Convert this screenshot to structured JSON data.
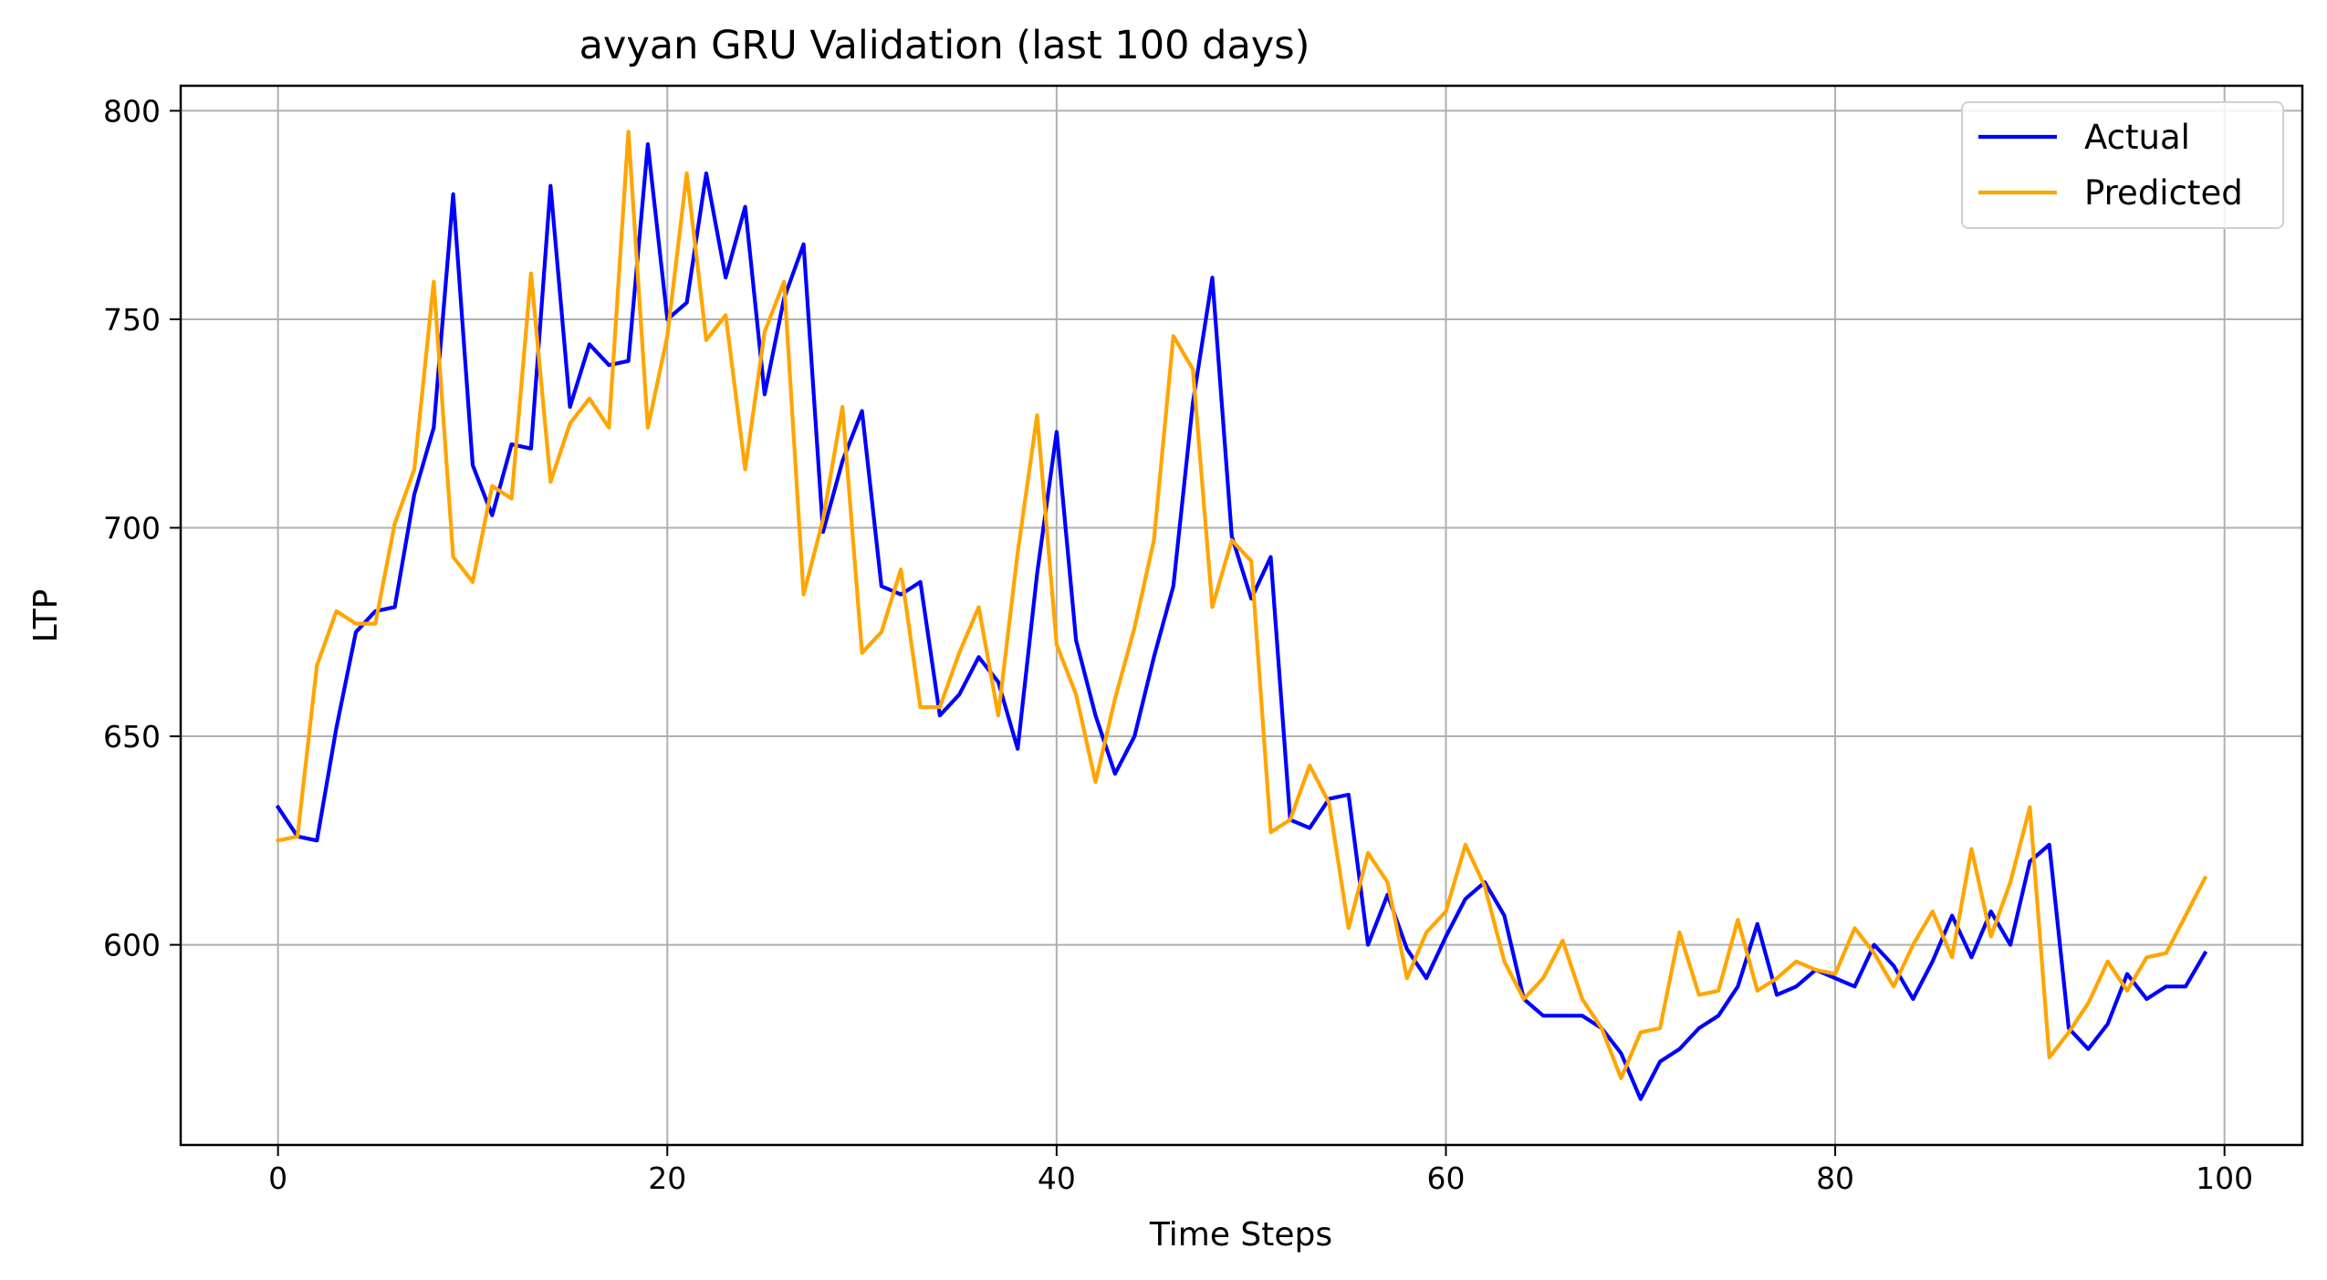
{
  "chart_data": {
    "type": "line",
    "title": "avyan GRU Validation (last 100 days)",
    "xlabel": "Time Steps",
    "ylabel": "LTP",
    "xlim": [
      -5,
      104
    ],
    "ylim": [
      552,
      806
    ],
    "xticks": [
      0,
      20,
      40,
      60,
      80,
      100
    ],
    "yticks": [
      600,
      650,
      700,
      750,
      800
    ],
    "grid": true,
    "legend": "top-right",
    "x": [
      0,
      1,
      2,
      3,
      4,
      5,
      6,
      7,
      8,
      9,
      10,
      11,
      12,
      13,
      14,
      15,
      16,
      17,
      18,
      19,
      20,
      21,
      22,
      23,
      24,
      25,
      26,
      27,
      28,
      29,
      30,
      31,
      32,
      33,
      34,
      35,
      36,
      37,
      38,
      39,
      40,
      41,
      42,
      43,
      44,
      45,
      46,
      47,
      48,
      49,
      50,
      51,
      52,
      53,
      54,
      55,
      56,
      57,
      58,
      59,
      60,
      61,
      62,
      63,
      64,
      65,
      66,
      67,
      68,
      69,
      70,
      71,
      72,
      73,
      74,
      75,
      76,
      77,
      78,
      79,
      80,
      81,
      82,
      83,
      84,
      85,
      86,
      87,
      88,
      89,
      90,
      91,
      92,
      93,
      94,
      95,
      96,
      97,
      98,
      99
    ],
    "series": [
      {
        "name": "Actual",
        "color": "#0000ff",
        "values": [
          633,
          626,
          625,
          652,
          675,
          680,
          681,
          708,
          724,
          780,
          715,
          703,
          720,
          719,
          782,
          729,
          744,
          739,
          740,
          792,
          750,
          754,
          785,
          760,
          777,
          732,
          755,
          768,
          699,
          716,
          728,
          686,
          684,
          687,
          655,
          660,
          669,
          663,
          647,
          689,
          723,
          673,
          655,
          641,
          650,
          669,
          686,
          730,
          760,
          698,
          683,
          693,
          630,
          628,
          635,
          636,
          600,
          612,
          599,
          592,
          602,
          611,
          615,
          607,
          587,
          583,
          583,
          583,
          580,
          574,
          563,
          572,
          575,
          580,
          583,
          590,
          605,
          588,
          590,
          594,
          592,
          590,
          600,
          595,
          587,
          596,
          607,
          597,
          608,
          600,
          620,
          624,
          580,
          575,
          581,
          593,
          587,
          590,
          590,
          598
        ]
      },
      {
        "name": "Predicted",
        "color": "#ffa500",
        "values": [
          625,
          626,
          667,
          680,
          677,
          677,
          701,
          714,
          759,
          693,
          687,
          710,
          707,
          761,
          711,
          725,
          731,
          724,
          795,
          724,
          746,
          785,
          745,
          751,
          714,
          747,
          759,
          684,
          702,
          729,
          670,
          675,
          690,
          657,
          657,
          670,
          681,
          655,
          694,
          727,
          672,
          660,
          639,
          659,
          676,
          697,
          746,
          738,
          681,
          697,
          692,
          627,
          630,
          643,
          634,
          604,
          622,
          615,
          592,
          603,
          608,
          624,
          614,
          596,
          587,
          592,
          601,
          587,
          580,
          568,
          579,
          580,
          603,
          588,
          589,
          606,
          589,
          592,
          596,
          594,
          593,
          604,
          598,
          590,
          600,
          608,
          597,
          623,
          602,
          615,
          633,
          573,
          579,
          586,
          596,
          589,
          597,
          598,
          607,
          616
        ]
      }
    ]
  }
}
